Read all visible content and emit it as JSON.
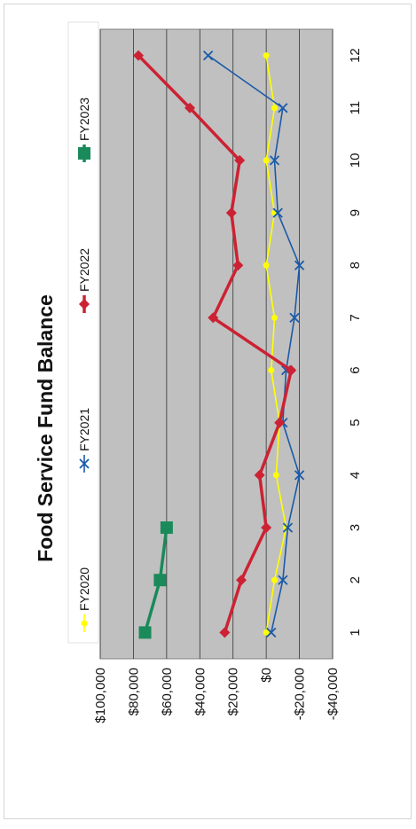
{
  "chart_data": {
    "type": "line",
    "title": "Food Service Fund Balance",
    "xlabel": "",
    "ylabel": "",
    "orientation": "rotated-90-clockwise",
    "x": [
      1,
      2,
      3,
      4,
      5,
      6,
      7,
      8,
      9,
      10,
      11,
      12
    ],
    "x_tick_labels": [
      "1",
      "2",
      "3",
      "4",
      "5",
      "6",
      "7",
      "8",
      "9",
      "10",
      "11",
      "12"
    ],
    "ylim": [
      -40000,
      100000
    ],
    "y_tick_values": [
      100000,
      80000,
      60000,
      40000,
      20000,
      0,
      -20000,
      -40000
    ],
    "y_tick_labels": [
      "$100,000",
      "$80,000",
      "$60,000",
      "$40,000",
      "$20,000",
      "$0",
      "-$20,000",
      "-$40,000"
    ],
    "grid": true,
    "legend_position": "top",
    "series": [
      {
        "name": "FY2020",
        "color": "#ffff00",
        "marker": "circle",
        "values": [
          0,
          -5000,
          -12000,
          -6000,
          -8000,
          -3000,
          -5000,
          0,
          -5000,
          0,
          -5000,
          0
        ]
      },
      {
        "name": "FY2021",
        "color": "#1a5aa8",
        "marker": "x",
        "values": [
          -3000,
          -10000,
          -13000,
          -20000,
          -10000,
          -12000,
          -17000,
          -20000,
          -7000,
          -5000,
          -10000,
          35000
        ]
      },
      {
        "name": "FY2022",
        "color": "#cc2233",
        "marker": "diamond",
        "values": [
          25000,
          15000,
          0,
          4000,
          -8000,
          -15000,
          32000,
          17000,
          21000,
          16000,
          46000,
          77000
        ]
      },
      {
        "name": "FY2023",
        "color": "#1a8a5a",
        "marker": "square",
        "values": [
          73000,
          64000,
          60000,
          null,
          null,
          null,
          null,
          null,
          null,
          null,
          null,
          null
        ]
      }
    ]
  }
}
